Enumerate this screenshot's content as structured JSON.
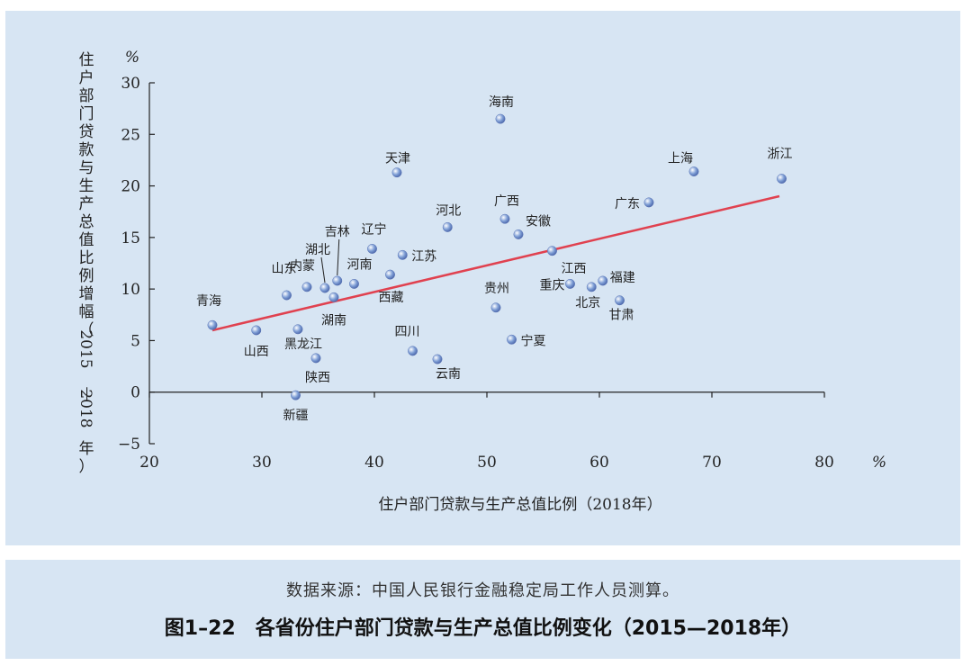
{
  "chart_data": {
    "type": "scatter",
    "xlabel": "住户部门贷款与生产总值比例（2018年）",
    "ylabel_chars": [
      "住",
      "户",
      "部",
      "门",
      "贷",
      "款",
      "与",
      "生",
      "产",
      "总",
      "值",
      "比",
      "例",
      "增",
      "幅",
      "（",
      "2015",
      "—",
      "2018",
      "年",
      "）"
    ],
    "x_unit": "%",
    "y_unit": "%",
    "xlim": [
      20,
      80
    ],
    "ylim": [
      -5,
      30
    ],
    "x_ticks": [
      20,
      30,
      40,
      50,
      60,
      70,
      80
    ],
    "y_ticks": [
      -5,
      0,
      5,
      10,
      15,
      20,
      25,
      30
    ],
    "points": [
      {
        "label": "青海",
        "x": 25.6,
        "y": 6.5
      },
      {
        "label": "山西",
        "x": 29.5,
        "y": 6.0
      },
      {
        "label": "山东",
        "x": 32.2,
        "y": 9.4
      },
      {
        "label": "内蒙",
        "x": 34.0,
        "y": 10.2
      },
      {
        "label": "湖北",
        "x": 35.6,
        "y": 10.1
      },
      {
        "label": "吉林",
        "x": 36.7,
        "y": 10.8
      },
      {
        "label": "湖南",
        "x": 36.4,
        "y": 9.2
      },
      {
        "label": "河南",
        "x": 38.2,
        "y": 10.5
      },
      {
        "label": "辽宁",
        "x": 39.8,
        "y": 13.9
      },
      {
        "label": "黑龙江",
        "x": 33.2,
        "y": 6.1
      },
      {
        "label": "陕西",
        "x": 34.8,
        "y": 3.3
      },
      {
        "label": "新疆",
        "x": 33.0,
        "y": -0.3
      },
      {
        "label": "西藏",
        "x": 41.4,
        "y": 11.4
      },
      {
        "label": "江苏",
        "x": 42.5,
        "y": 13.3
      },
      {
        "label": "天津",
        "x": 42.0,
        "y": 21.3
      },
      {
        "label": "四川",
        "x": 43.4,
        "y": 4.0
      },
      {
        "label": "云南",
        "x": 45.6,
        "y": 3.2
      },
      {
        "label": "河北",
        "x": 46.5,
        "y": 16.0
      },
      {
        "label": "贵州",
        "x": 50.8,
        "y": 8.2
      },
      {
        "label": "海南",
        "x": 51.2,
        "y": 26.5
      },
      {
        "label": "广西",
        "x": 51.6,
        "y": 16.8
      },
      {
        "label": "安徽",
        "x": 52.8,
        "y": 15.3
      },
      {
        "label": "宁夏",
        "x": 52.2,
        "y": 5.1
      },
      {
        "label": "江西",
        "x": 55.8,
        "y": 13.7
      },
      {
        "label": "重庆",
        "x": 57.4,
        "y": 10.5
      },
      {
        "label": "北京",
        "x": 59.3,
        "y": 10.2
      },
      {
        "label": "福建",
        "x": 60.3,
        "y": 10.8
      },
      {
        "label": "甘肃",
        "x": 61.8,
        "y": 8.9
      },
      {
        "label": "广东",
        "x": 64.4,
        "y": 18.4
      },
      {
        "label": "上海",
        "x": 68.4,
        "y": 21.4
      },
      {
        "label": "浙江",
        "x": 76.2,
        "y": 20.7
      }
    ],
    "trendline": {
      "x": [
        25.6,
        76.0
      ],
      "y": [
        6.0,
        19.0
      ],
      "color": "#e0414f"
    },
    "marker_color": "#7f9fd6"
  },
  "caption": {
    "source": "数据来源：中国人民银行金融稳定局工作人员测算。",
    "title": "图1–22　各省份住户部门贷款与生产总值比例变化（2015—2018年）"
  }
}
